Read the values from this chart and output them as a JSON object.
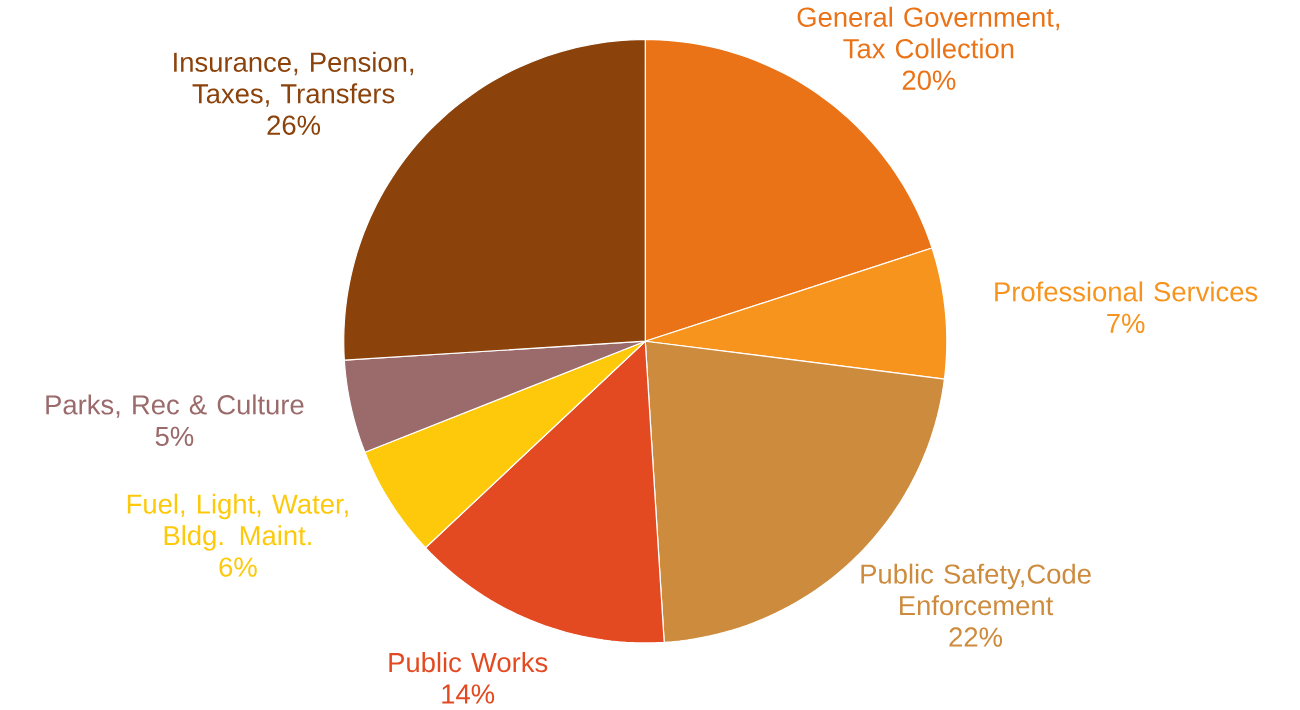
{
  "chart_data": {
    "type": "pie",
    "categories": [
      "General Government, Tax Collection",
      "Professional Services",
      "Public Safety,Code Enforcement",
      "Public Works",
      "Fuel, Light, Water, Bldg. Maint.",
      "Parks, Rec & Culture",
      "Insurance, Pension, Taxes, Transfers"
    ],
    "values": [
      20,
      7,
      22,
      14,
      6,
      5,
      26
    ],
    "value_labels": [
      "20%",
      "7%",
      "22%",
      "14%",
      "6%",
      "5%",
      "26%"
    ],
    "colors": [
      "#ea7317",
      "#f7941d",
      "#cd8b3e",
      "#e44a21",
      "#fdc90a",
      "#9b6a6a",
      "#8b420b"
    ]
  }
}
